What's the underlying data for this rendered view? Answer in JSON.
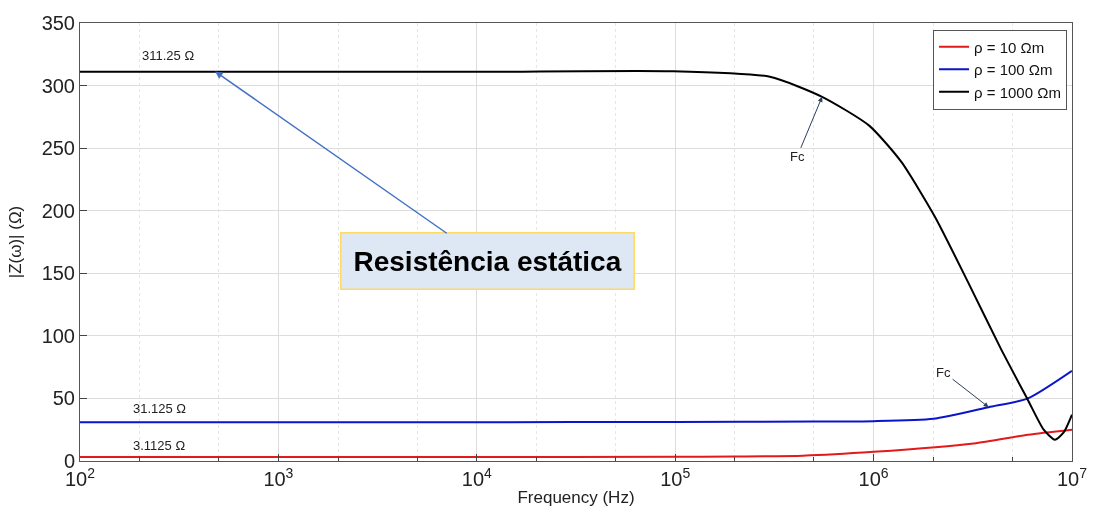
{
  "chart_data": {
    "type": "line",
    "xlabel": "Frequency (Hz)",
    "ylabel": "|Z(ω)| (Ω)",
    "log": "x",
    "grid": true,
    "legend": "top right",
    "marker": "none",
    "line_style": "solid",
    "xlim": [
      100,
      10000000
    ],
    "ylim": [
      0,
      350
    ],
    "xticks": [
      {
        "value": 100,
        "label": "10$^{2}$"
      },
      {
        "value": 1000,
        "label": "10$^{3}$"
      },
      {
        "value": 10000,
        "label": "10$^{4}$"
      },
      {
        "value": 100000,
        "label": "10$^{5}$"
      },
      {
        "value": 1000000,
        "label": "10$^{6}$"
      },
      {
        "value": 10000000,
        "label": "10$^{7}$"
      }
    ],
    "yticks": [
      0,
      50,
      100,
      150,
      200,
      250,
      300,
      350
    ],
    "series": [
      {
        "name": "ρ = 10 Ωm",
        "color": "#e31a1c",
        "x": [
          100,
          10000,
          100000,
          200000,
          440000,
          1000000,
          3200000,
          6000000,
          10000000
        ],
        "values": [
          3.1,
          3.1,
          3.3,
          3.6,
          4.2,
          7.3,
          14,
          21,
          25
        ]
      },
      {
        "name": "ρ = 100 Ωm",
        "color": "#0a14c8",
        "x": [
          100,
          10000,
          100000,
          500000,
          1000000,
          2000000,
          3800000,
          6000000,
          10000000
        ],
        "values": [
          31,
          31,
          31.2,
          31.5,
          31.8,
          33.7,
          43,
          50,
          72
        ]
      },
      {
        "name": "ρ = 1000 Ωm",
        "color": "#000000",
        "x": [
          100,
          10000,
          95000,
          300000,
          550000,
          950000,
          1380000,
          2040000,
          3000000,
          4370000,
          6000000,
          7200000,
          8200000,
          9100000,
          10000000
        ],
        "values": [
          311,
          311,
          311.5,
          307,
          291,
          268,
          239,
          195,
          142.5,
          90,
          48.6,
          25,
          17,
          23,
          37
        ]
      }
    ],
    "annotations": [
      {
        "text": "311.25 Ω",
        "x": 200,
        "y": 311.25
      },
      {
        "text": "31.125 Ω",
        "x": 180,
        "y": 31.125
      },
      {
        "text": "3.1125 Ω",
        "x": 180,
        "y": 3.1125
      },
      {
        "text": "Fc",
        "x": 550000,
        "y": 291
      },
      {
        "text": "Fc",
        "x": 3800000,
        "y": 43
      },
      {
        "text": "Resistência estática",
        "x": 480,
        "y": 311.25
      }
    ]
  }
}
